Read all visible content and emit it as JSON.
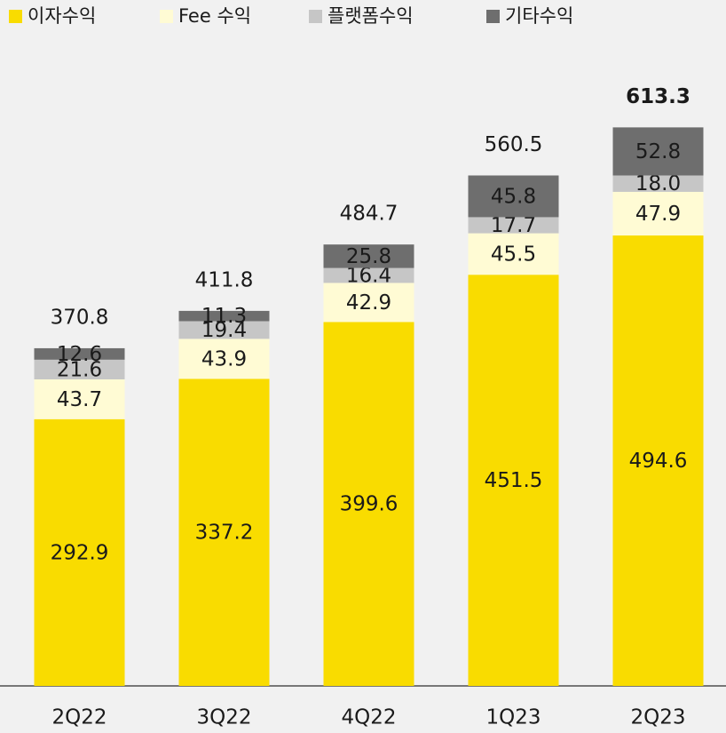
{
  "chart_data": {
    "type": "stacked_bar",
    "categories": [
      "2Q22",
      "3Q22",
      "4Q22",
      "1Q23",
      "2Q23"
    ],
    "series": [
      {
        "name": "이자수익",
        "color": "#f9dc00",
        "values": [
          292.9,
          337.2,
          399.6,
          451.5,
          494.6
        ]
      },
      {
        "name": "Fee 수익",
        "color": "#fffbd4",
        "values": [
          43.7,
          43.9,
          42.9,
          45.5,
          47.9
        ]
      },
      {
        "name": "플랫폼수익",
        "color": "#c6c6c6",
        "values": [
          21.6,
          19.4,
          16.4,
          17.7,
          18.0
        ],
        "value_labels": [
          "21.6",
          "19.4",
          "16.4",
          "17.7",
          "18.0"
        ]
      },
      {
        "name": "기타수익",
        "color": "#6e6e6e",
        "values": [
          12.6,
          11.3,
          25.8,
          45.8,
          52.8
        ]
      }
    ],
    "totals": [
      370.8,
      411.8,
      484.7,
      560.5,
      613.3
    ],
    "legend": "top-left"
  }
}
